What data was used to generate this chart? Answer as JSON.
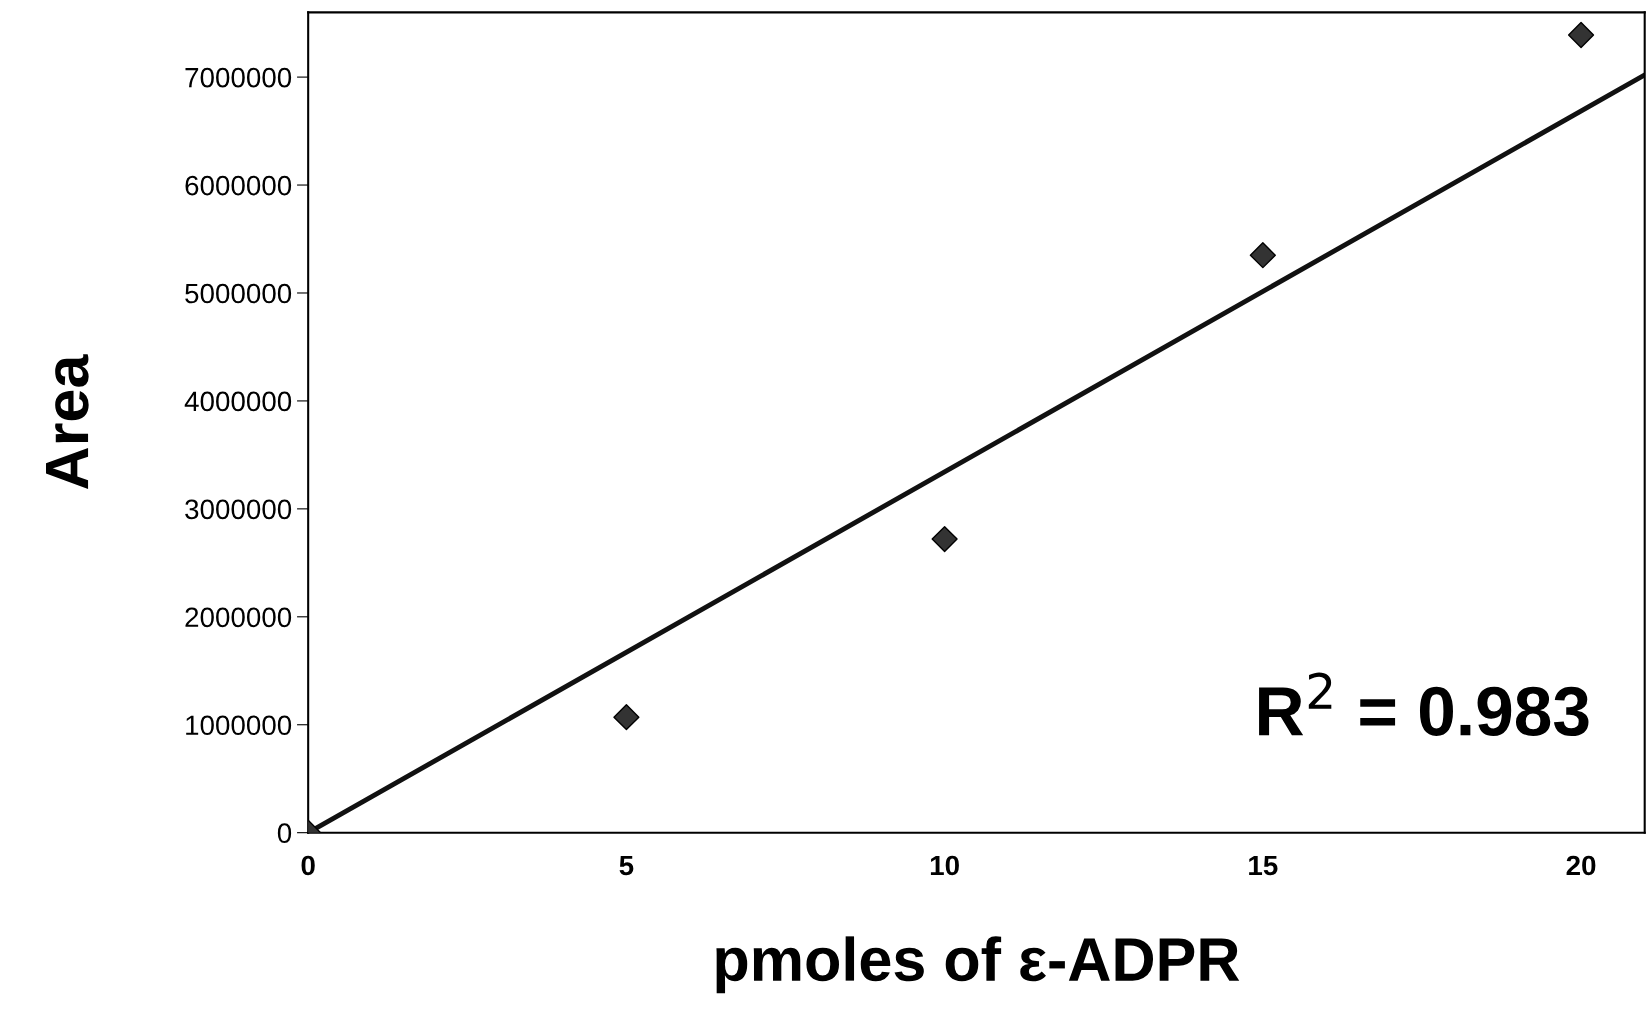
{
  "chart_data": {
    "type": "scatter",
    "xlabel": "pmoles of ε-ADPR",
    "ylabel": "Area",
    "series": [
      {
        "color": "#333333",
        "marker": "diamond",
        "x": [
          0,
          5,
          10,
          15,
          20
        ],
        "values": [
          0,
          1070000,
          2720000,
          5350000,
          7390000
        ]
      },
      {
        "type": "line",
        "color": "#111111",
        "marker": "none",
        "line_style": "solid",
        "x": [
          0,
          21
        ],
        "values": [
          0,
          7020000
        ]
      }
    ],
    "annotations": [
      "R$^{2}$ = 0.983"
    ],
    "xlim": [
      0,
      21
    ],
    "xticks": [
      0,
      5,
      10,
      15,
      20
    ],
    "ylim": [
      0,
      7600000
    ],
    "yticks": [
      0,
      1000000,
      2000000,
      3000000,
      4000000,
      5000000,
      6000000,
      7000000
    ],
    "grid": false,
    "legend": false
  }
}
